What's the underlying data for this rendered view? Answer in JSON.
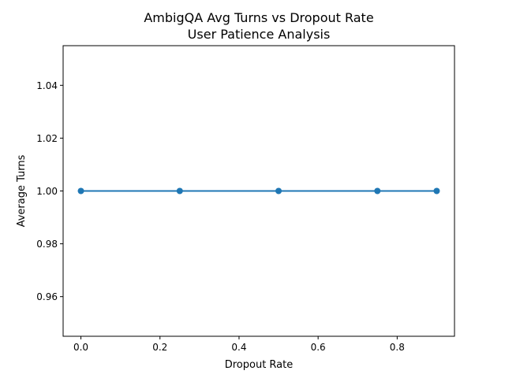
{
  "chart_data": {
    "type": "line",
    "title": "AmbigQA Avg Turns vs Dropout Rate",
    "subtitle": "User Patience Analysis",
    "xlabel": "Dropout Rate",
    "ylabel": "Average Turns",
    "xlim": [
      -0.045,
      0.945
    ],
    "ylim": [
      0.945,
      1.055
    ],
    "xticks": [
      0.0,
      0.2,
      0.4,
      0.6,
      0.8
    ],
    "xtick_labels": [
      "0.0",
      "0.2",
      "0.4",
      "0.6",
      "0.8"
    ],
    "yticks": [
      0.96,
      0.98,
      1.0,
      1.02,
      1.04
    ],
    "ytick_labels": [
      "0.96",
      "0.98",
      "1.00",
      "1.02",
      "1.04"
    ],
    "grid": false,
    "legend": false,
    "series": [
      {
        "x": [
          0.0,
          0.25,
          0.5,
          0.75,
          0.9
        ],
        "y": [
          1.0,
          1.0,
          1.0,
          1.0,
          1.0
        ],
        "color": "#1f77b4",
        "marker": "circle"
      }
    ]
  }
}
